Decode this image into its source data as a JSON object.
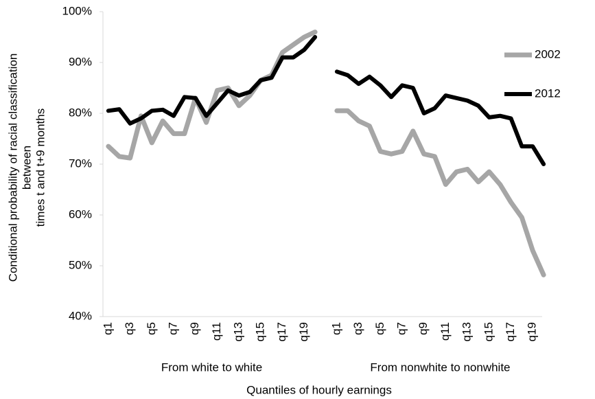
{
  "chart_data": {
    "type": "line",
    "y_label": [
      "Conditional probability of racial classification",
      "between",
      "times t and t+9 months"
    ],
    "x_label": "Quantiles of hourly earnings",
    "groups": [
      "From white to white",
      "From nonwhite to nonwhite"
    ],
    "categories": [
      "q1",
      null,
      "q3",
      null,
      "q5",
      null,
      "q7",
      null,
      "q9",
      null,
      "q11",
      null,
      "q13",
      null,
      "q15",
      null,
      "q17",
      null,
      "q19",
      null,
      null,
      "q1",
      null,
      "q3",
      null,
      "q5",
      null,
      "q7",
      null,
      "q9",
      null,
      "q11",
      null,
      "q13",
      null,
      "q15",
      null,
      "q17",
      null,
      "q19",
      null
    ],
    "series": [
      {
        "name": "2002",
        "color": "#a6a6a6",
        "values": [
          73.5,
          71.5,
          71.2,
          79.5,
          74.2,
          78.5,
          76,
          76,
          83,
          78.2,
          84.5,
          85,
          81.5,
          83.5,
          86.5,
          87.5,
          92,
          93.5,
          95,
          96,
          null,
          80.5,
          80.5,
          78.5,
          77.5,
          72.5,
          72,
          72.5,
          76.5,
          72,
          71.5,
          66,
          68.5,
          69,
          66.5,
          68.5,
          66,
          62.5,
          59.5,
          53,
          48.2
        ]
      },
      {
        "name": "2012",
        "color": "#000000",
        "values": [
          80.5,
          80.8,
          78,
          79,
          80.5,
          80.7,
          79.5,
          83.2,
          83,
          79.5,
          82,
          84.5,
          83.5,
          84.2,
          86.5,
          87,
          91,
          91,
          92.5,
          95,
          null,
          88.2,
          87.5,
          85.8,
          87.2,
          85.5,
          83.2,
          85.5,
          85,
          80,
          81,
          83.5,
          83,
          82.5,
          81.5,
          79.2,
          79.5,
          79,
          73.5,
          73.5,
          70
        ]
      }
    ],
    "ylim": [
      40,
      100
    ],
    "yticks": [
      {
        "value": 40,
        "label": "40%"
      },
      {
        "value": 50,
        "label": "50%"
      },
      {
        "value": 60,
        "label": "60%"
      },
      {
        "value": 70,
        "label": "70%"
      },
      {
        "value": 80,
        "label": "80%"
      },
      {
        "value": 90,
        "label": "90%"
      },
      {
        "value": 100,
        "label": "100%"
      }
    ],
    "legend": "right"
  }
}
